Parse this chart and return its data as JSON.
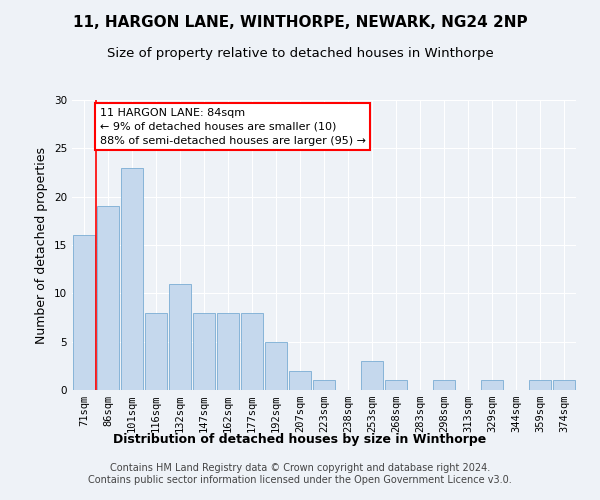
{
  "title": "11, HARGON LANE, WINTHORPE, NEWARK, NG24 2NP",
  "subtitle": "Size of property relative to detached houses in Winthorpe",
  "xlabel": "Distribution of detached houses by size in Winthorpe",
  "ylabel": "Number of detached properties",
  "categories": [
    "71sqm",
    "86sqm",
    "101sqm",
    "116sqm",
    "132sqm",
    "147sqm",
    "162sqm",
    "177sqm",
    "192sqm",
    "207sqm",
    "223sqm",
    "238sqm",
    "253sqm",
    "268sqm",
    "283sqm",
    "298sqm",
    "313sqm",
    "329sqm",
    "344sqm",
    "359sqm",
    "374sqm"
  ],
  "values": [
    16,
    19,
    23,
    8,
    11,
    8,
    8,
    8,
    5,
    2,
    1,
    0,
    3,
    1,
    0,
    1,
    0,
    1,
    0,
    1,
    1
  ],
  "bar_color": "#c5d8ed",
  "bar_edge_color": "#7aadd4",
  "annotation_text_line1": "11 HARGON LANE: 84sqm",
  "annotation_text_line2": "← 9% of detached houses are smaller (10)",
  "annotation_text_line3": "88% of semi-detached houses are larger (95) →",
  "annotation_box_color": "white",
  "annotation_box_edge_color": "red",
  "vline_color": "red",
  "vline_x_index": 1,
  "ylim": [
    0,
    30
  ],
  "yticks": [
    0,
    5,
    10,
    15,
    20,
    25,
    30
  ],
  "footer_line1": "Contains HM Land Registry data © Crown copyright and database right 2024.",
  "footer_line2": "Contains public sector information licensed under the Open Government Licence v3.0.",
  "background_color": "#eef2f7",
  "plot_bg_color": "#eef2f7",
  "grid_color": "#ffffff",
  "title_fontsize": 11,
  "subtitle_fontsize": 9.5,
  "axis_label_fontsize": 9,
  "tick_fontsize": 7.5,
  "annotation_fontsize": 8,
  "footer_fontsize": 7
}
